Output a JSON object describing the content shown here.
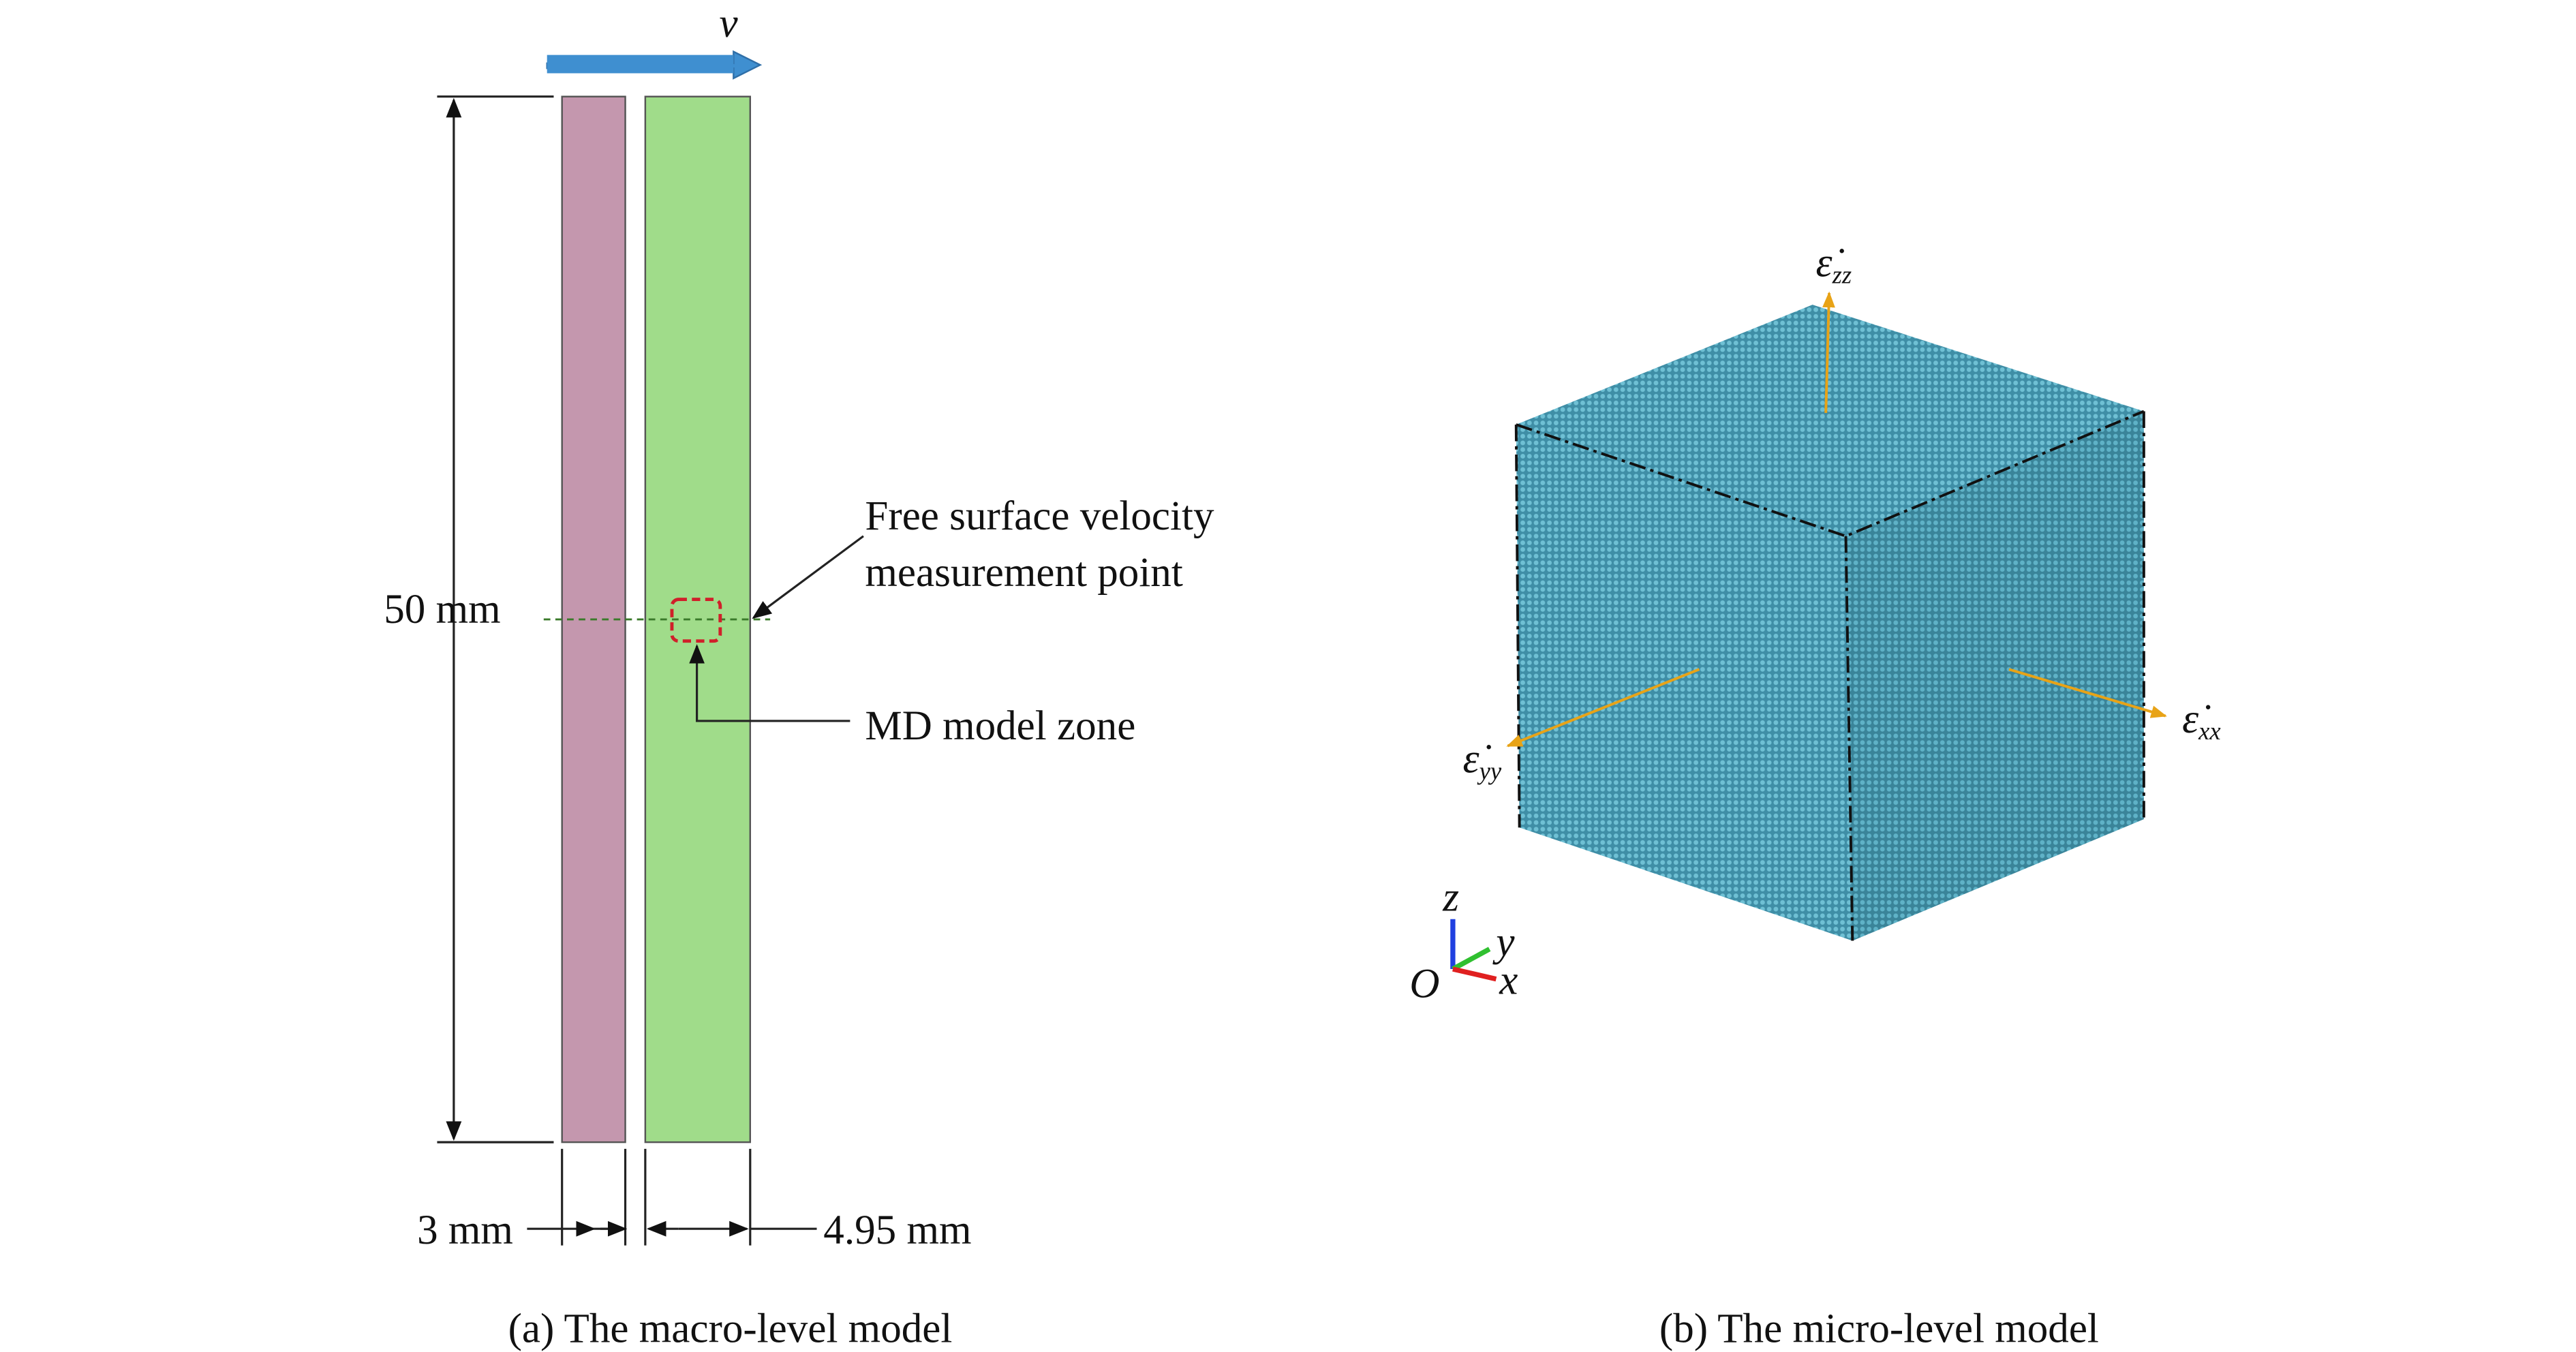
{
  "panel_a": {
    "velocity_label": "v",
    "annotation_lines": [
      "Free surface velocity",
      "measurement point"
    ],
    "height_label": "50 mm",
    "zone_label": "MD model zone",
    "width_left_label": "3 mm",
    "width_right_label": "4.95 mm",
    "caption": "(a) The macro-level model"
  },
  "panel_b": {
    "strain_rates": [
      {
        "symbol": "ε̇",
        "subscript": "zz"
      },
      {
        "symbol": "ε̇",
        "subscript": "yy"
      },
      {
        "symbol": "ε̇",
        "subscript": "xx"
      }
    ],
    "axes": {
      "z": "z",
      "y": "y",
      "x": "x",
      "origin": "O"
    },
    "caption": "(b) The micro-level model"
  }
}
